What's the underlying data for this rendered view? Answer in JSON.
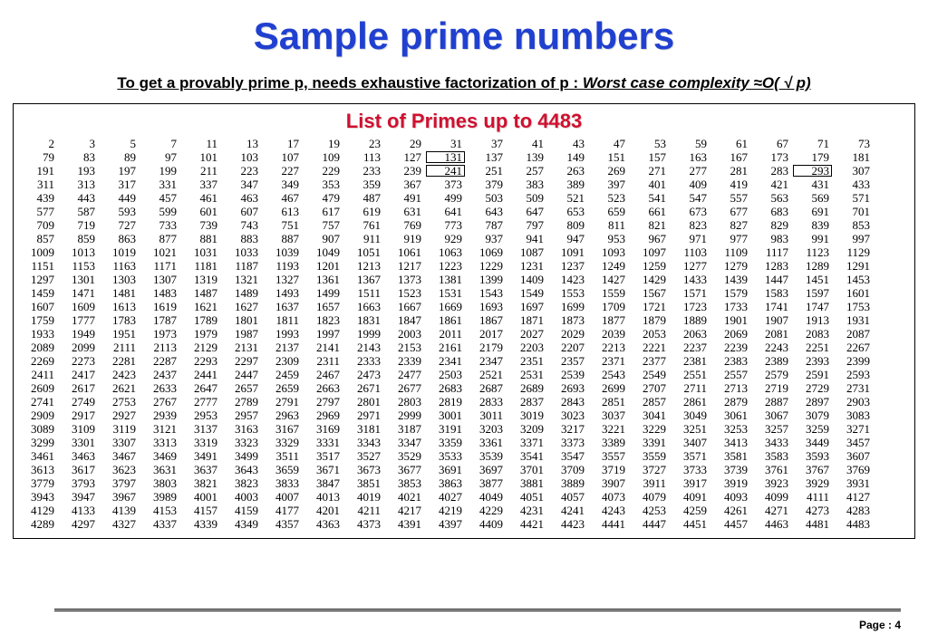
{
  "title": "Sample prime numbers",
  "title_color": "#2040d0",
  "subhead_plain": "To get a provably prime p, needs exhaustive factorization of p : ",
  "subhead_ital": "Worst case complexity ≈O( √ p)",
  "list_title": "List of Primes up to 4483",
  "list_title_color": "#d01030",
  "columns": 21,
  "boxed_values": [
    131,
    241,
    293
  ],
  "primes": [
    2,
    3,
    5,
    7,
    11,
    13,
    17,
    19,
    23,
    29,
    31,
    37,
    41,
    43,
    47,
    53,
    59,
    61,
    67,
    71,
    73,
    79,
    83,
    89,
    97,
    101,
    103,
    107,
    109,
    113,
    127,
    131,
    137,
    139,
    149,
    151,
    157,
    163,
    167,
    173,
    179,
    181,
    191,
    193,
    197,
    199,
    211,
    223,
    227,
    229,
    233,
    239,
    241,
    251,
    257,
    263,
    269,
    271,
    277,
    281,
    283,
    293,
    307,
    311,
    313,
    317,
    331,
    337,
    347,
    349,
    353,
    359,
    367,
    373,
    379,
    383,
    389,
    397,
    401,
    409,
    419,
    421,
    431,
    433,
    439,
    443,
    449,
    457,
    461,
    463,
    467,
    479,
    487,
    491,
    499,
    503,
    509,
    521,
    523,
    541,
    547,
    557,
    563,
    569,
    571,
    577,
    587,
    593,
    599,
    601,
    607,
    613,
    617,
    619,
    631,
    641,
    643,
    647,
    653,
    659,
    661,
    673,
    677,
    683,
    691,
    701,
    709,
    719,
    727,
    733,
    739,
    743,
    751,
    757,
    761,
    769,
    773,
    787,
    797,
    809,
    811,
    821,
    823,
    827,
    829,
    839,
    853,
    857,
    859,
    863,
    877,
    881,
    883,
    887,
    907,
    911,
    919,
    929,
    937,
    941,
    947,
    953,
    967,
    971,
    977,
    983,
    991,
    997,
    1009,
    1013,
    1019,
    1021,
    1031,
    1033,
    1039,
    1049,
    1051,
    1061,
    1063,
    1069,
    1087,
    1091,
    1093,
    1097,
    1103,
    1109,
    1117,
    1123,
    1129,
    1151,
    1153,
    1163,
    1171,
    1181,
    1187,
    1193,
    1201,
    1213,
    1217,
    1223,
    1229,
    1231,
    1237,
    1249,
    1259,
    1277,
    1279,
    1283,
    1289,
    1291,
    1297,
    1301,
    1303,
    1307,
    1319,
    1321,
    1327,
    1361,
    1367,
    1373,
    1381,
    1399,
    1409,
    1423,
    1427,
    1429,
    1433,
    1439,
    1447,
    1451,
    1453,
    1459,
    1471,
    1481,
    1483,
    1487,
    1489,
    1493,
    1499,
    1511,
    1523,
    1531,
    1543,
    1549,
    1553,
    1559,
    1567,
    1571,
    1579,
    1583,
    1597,
    1601,
    1607,
    1609,
    1613,
    1619,
    1621,
    1627,
    1637,
    1657,
    1663,
    1667,
    1669,
    1693,
    1697,
    1699,
    1709,
    1721,
    1723,
    1733,
    1741,
    1747,
    1753,
    1759,
    1777,
    1783,
    1787,
    1789,
    1801,
    1811,
    1823,
    1831,
    1847,
    1861,
    1867,
    1871,
    1873,
    1877,
    1879,
    1889,
    1901,
    1907,
    1913,
    1931,
    1933,
    1949,
    1951,
    1973,
    1979,
    1987,
    1993,
    1997,
    1999,
    2003,
    2011,
    2017,
    2027,
    2029,
    2039,
    2053,
    2063,
    2069,
    2081,
    2083,
    2087,
    2089,
    2099,
    2111,
    2113,
    2129,
    2131,
    2137,
    2141,
    2143,
    2153,
    2161,
    2179,
    2203,
    2207,
    2213,
    2221,
    2237,
    2239,
    2243,
    2251,
    2267,
    2269,
    2273,
    2281,
    2287,
    2293,
    2297,
    2309,
    2311,
    2333,
    2339,
    2341,
    2347,
    2351,
    2357,
    2371,
    2377,
    2381,
    2383,
    2389,
    2393,
    2399,
    2411,
    2417,
    2423,
    2437,
    2441,
    2447,
    2459,
    2467,
    2473,
    2477,
    2503,
    2521,
    2531,
    2539,
    2543,
    2549,
    2551,
    2557,
    2579,
    2591,
    2593,
    2609,
    2617,
    2621,
    2633,
    2647,
    2657,
    2659,
    2663,
    2671,
    2677,
    2683,
    2687,
    2689,
    2693,
    2699,
    2707,
    2711,
    2713,
    2719,
    2729,
    2731,
    2741,
    2749,
    2753,
    2767,
    2777,
    2789,
    2791,
    2797,
    2801,
    2803,
    2819,
    2833,
    2837,
    2843,
    2851,
    2857,
    2861,
    2879,
    2887,
    2897,
    2903,
    2909,
    2917,
    2927,
    2939,
    2953,
    2957,
    2963,
    2969,
    2971,
    2999,
    3001,
    3011,
    3019,
    3023,
    3037,
    3041,
    3049,
    3061,
    3067,
    3079,
    3083,
    3089,
    3109,
    3119,
    3121,
    3137,
    3163,
    3167,
    3169,
    3181,
    3187,
    3191,
    3203,
    3209,
    3217,
    3221,
    3229,
    3251,
    3253,
    3257,
    3259,
    3271,
    3299,
    3301,
    3307,
    3313,
    3319,
    3323,
    3329,
    3331,
    3343,
    3347,
    3359,
    3361,
    3371,
    3373,
    3389,
    3391,
    3407,
    3413,
    3433,
    3449,
    3457,
    3461,
    3463,
    3467,
    3469,
    3491,
    3499,
    3511,
    3517,
    3527,
    3529,
    3533,
    3539,
    3541,
    3547,
    3557,
    3559,
    3571,
    3581,
    3583,
    3593,
    3607,
    3613,
    3617,
    3623,
    3631,
    3637,
    3643,
    3659,
    3671,
    3673,
    3677,
    3691,
    3697,
    3701,
    3709,
    3719,
    3727,
    3733,
    3739,
    3761,
    3767,
    3769,
    3779,
    3793,
    3797,
    3803,
    3821,
    3823,
    3833,
    3847,
    3851,
    3853,
    3863,
    3877,
    3881,
    3889,
    3907,
    3911,
    3917,
    3919,
    3923,
    3929,
    3931,
    3943,
    3947,
    3967,
    3989,
    4001,
    4003,
    4007,
    4013,
    4019,
    4021,
    4027,
    4049,
    4051,
    4057,
    4073,
    4079,
    4091,
    4093,
    4099,
    4111,
    4127,
    4129,
    4133,
    4139,
    4153,
    4157,
    4159,
    4177,
    4201,
    4211,
    4217,
    4219,
    4229,
    4231,
    4241,
    4243,
    4253,
    4259,
    4261,
    4271,
    4273,
    4283,
    4289,
    4297,
    4327,
    4337,
    4339,
    4349,
    4357,
    4363,
    4373,
    4391,
    4397,
    4409,
    4421,
    4423,
    4441,
    4447,
    4451,
    4457,
    4463,
    4481,
    4483
  ],
  "footer_label": "Page :  ",
  "footer_page": "4"
}
